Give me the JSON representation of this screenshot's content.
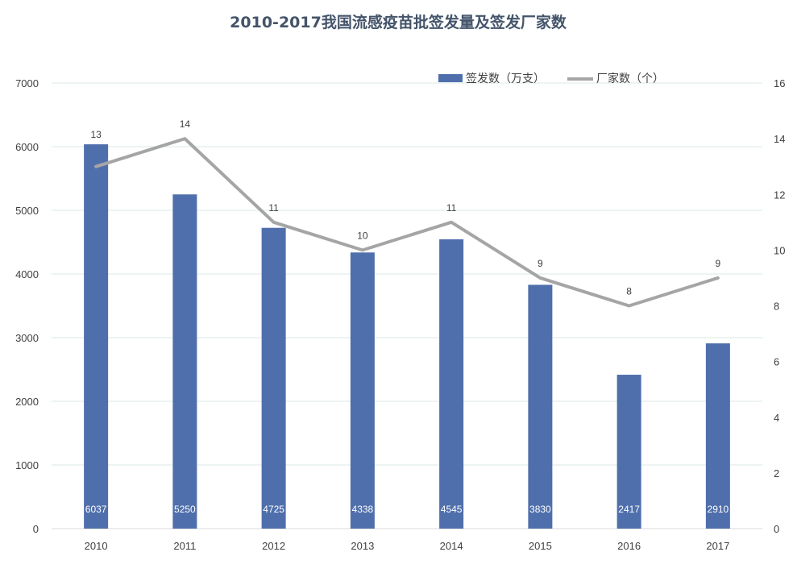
{
  "chart_data": {
    "type": "bar",
    "title": "2010-2017我国流感疫苗批签发量及签发厂家数",
    "categories": [
      "2010",
      "2011",
      "2012",
      "2013",
      "2014",
      "2015",
      "2016",
      "2017"
    ],
    "series": [
      {
        "name": "签发数（万支）",
        "type": "bar",
        "axis": "left",
        "color": "#4f6fac",
        "values": [
          6037,
          5250,
          4725,
          4338,
          4545,
          3830,
          2417,
          2910
        ]
      },
      {
        "name": "厂家数（个）",
        "type": "line",
        "axis": "right",
        "color": "#a5a5a5",
        "values": [
          13,
          14,
          11,
          10,
          11,
          9,
          8,
          9
        ]
      }
    ],
    "ylim": [
      0,
      7000
    ],
    "y_ticks": [
      "0",
      "1000",
      "2000",
      "3000",
      "4000",
      "5000",
      "6000",
      "7000"
    ],
    "y2lim": [
      0,
      16
    ],
    "y2_ticks": [
      "0",
      "2",
      "4",
      "6",
      "8",
      "10",
      "12",
      "14",
      "16"
    ],
    "grid": true,
    "legend_position": "top-right"
  }
}
